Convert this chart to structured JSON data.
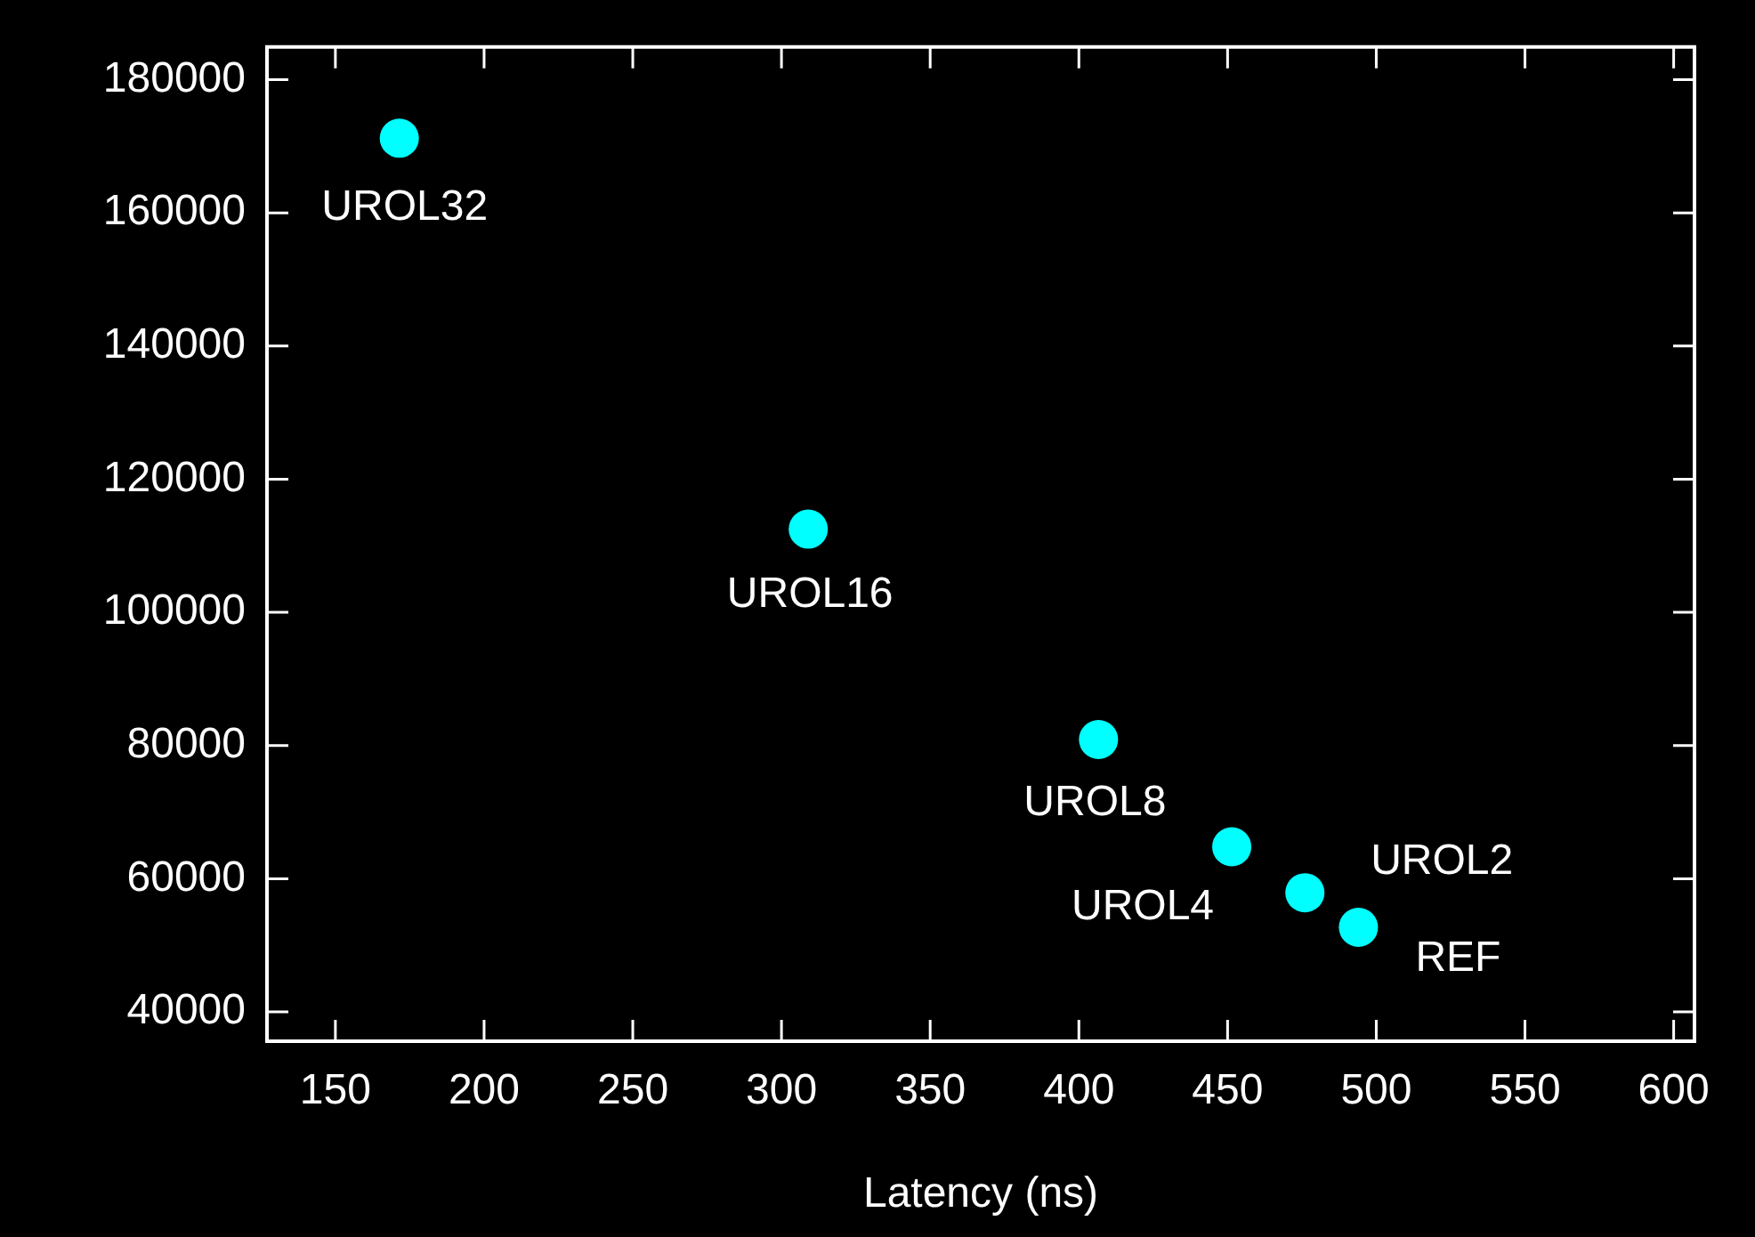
{
  "chart_data": {
    "type": "scatter",
    "xlabel": "Latency (ns)",
    "x": [
      171.5,
      309,
      406.6,
      451.4,
      476,
      494
    ],
    "series": [
      {
        "color": "#00ffff",
        "values": [
          171200,
          112500,
          80900,
          64800,
          57900,
          52700
        ]
      }
    ],
    "marker": "circle",
    "xlim": [
      127,
      607
    ],
    "xticks": [
      150,
      200,
      250,
      300,
      350,
      400,
      450,
      500,
      550,
      600
    ],
    "ylim": [
      35600,
      184900
    ],
    "yticks": [
      40000,
      60000,
      80000,
      100000,
      120000,
      140000,
      160000,
      180000
    ],
    "annotations": [
      {
        "text": "UROL32",
        "x": 171.5,
        "y": 171200
      },
      {
        "text": "UROL16",
        "x": 309,
        "y": 112500
      },
      {
        "text": "UROL8",
        "x": 406.6,
        "y": 80900
      },
      {
        "text": "UROL4",
        "x": 451.4,
        "y": 64800
      },
      {
        "text": "UROL2",
        "x": 476,
        "y": 57900
      },
      {
        "text": "REF",
        "x": 494,
        "y": 52700
      }
    ]
  }
}
